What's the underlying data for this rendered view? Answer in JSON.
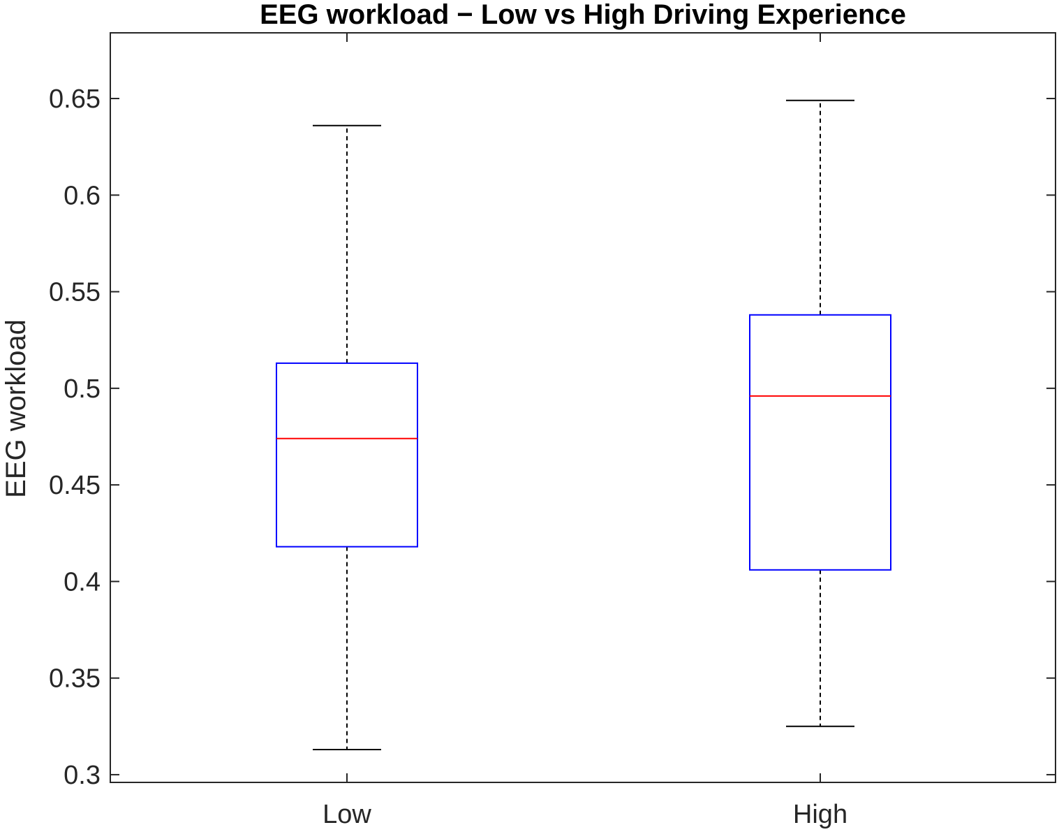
{
  "chart_data": {
    "type": "box",
    "title": "EEG workload − Low vs High Driving Experience",
    "xlabel": "",
    "ylabel": "EEG workload",
    "ylim": [
      0.296,
      0.684
    ],
    "yticks": [
      "0.3",
      "0.35",
      "0.4",
      "0.45",
      "0.5",
      "0.55",
      "0.6",
      "0.65"
    ],
    "yticks_values": [
      0.3,
      0.35,
      0.4,
      0.45,
      0.5,
      0.55,
      0.6,
      0.65
    ],
    "categories": [
      "Low",
      "High"
    ],
    "boxes": [
      {
        "category": "Low",
        "whisker_low": 0.313,
        "q1": 0.418,
        "median": 0.474,
        "q3": 0.513,
        "whisker_high": 0.636
      },
      {
        "category": "High",
        "whisker_low": 0.325,
        "q1": 0.406,
        "median": 0.496,
        "q3": 0.538,
        "whisker_high": 0.649
      }
    ],
    "grid": false,
    "colors": {
      "box": "#0000ff",
      "median": "#ff0000",
      "whisker": "#000000",
      "axis": "#262626"
    }
  }
}
